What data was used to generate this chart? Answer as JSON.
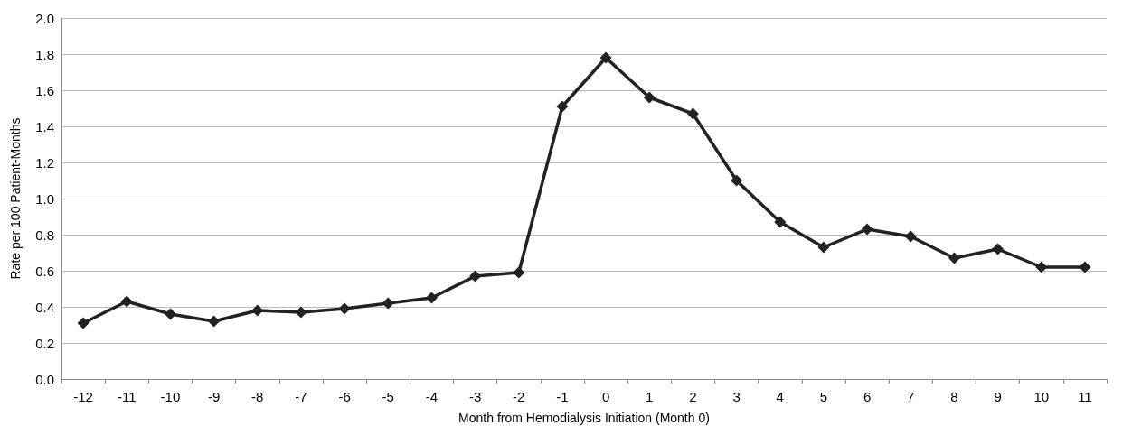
{
  "chart_data": {
    "type": "line",
    "xlabel": "Month from Hemodialysis Initiation (Month 0)",
    "ylabel": "Rate per 100 Patient-Months",
    "categories": [
      "-12",
      "-11",
      "-10",
      "-9",
      "-8",
      "-7",
      "-6",
      "-5",
      "-4",
      "-3",
      "-2",
      "-1",
      "0",
      "1",
      "2",
      "3",
      "4",
      "5",
      "6",
      "7",
      "8",
      "9",
      "10",
      "11"
    ],
    "series": [
      {
        "color": "#222222",
        "values": [
          0.31,
          0.43,
          0.36,
          0.32,
          0.38,
          0.37,
          0.39,
          0.42,
          0.45,
          0.57,
          0.59,
          1.51,
          1.78,
          1.56,
          1.47,
          1.1,
          0.87,
          0.73,
          0.83,
          0.79,
          0.67,
          0.72,
          0.62,
          0.62
        ]
      }
    ],
    "ylim": [
      0,
      2
    ],
    "yticks": [
      {
        "value": 0,
        "label": "0.0"
      },
      {
        "value": 0.2,
        "label": "0.2"
      },
      {
        "value": 0.4,
        "label": "0.4"
      },
      {
        "value": 0.6,
        "label": "0.6"
      },
      {
        "value": 0.8,
        "label": "0.8"
      },
      {
        "value": 1,
        "label": "1.0"
      },
      {
        "value": 1.2,
        "label": "1.2"
      },
      {
        "value": 1.4,
        "label": "1.4"
      },
      {
        "value": 1.6,
        "label": "1.6"
      },
      {
        "value": 1.8,
        "label": "1.8"
      },
      {
        "value": 2,
        "label": "2.0"
      }
    ],
    "grid": "y",
    "marker": "diamond",
    "line_style": "solid"
  }
}
